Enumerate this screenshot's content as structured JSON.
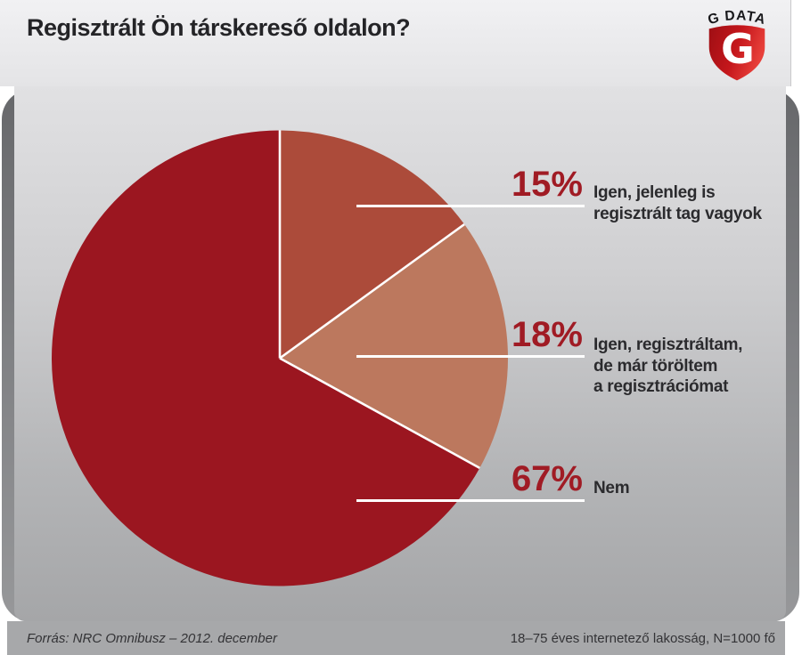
{
  "header": {
    "title": "Regisztrált Ön társkereső oldalon?",
    "logo": {
      "brand": "G DATA",
      "monogram": "G"
    }
  },
  "chart_data": {
    "type": "pie",
    "title": "Regisztrált Ön társkereső oldalon?",
    "start_angle_deg": 0,
    "direction": "clockwise",
    "unit": "%",
    "slices": [
      {
        "label": "Igen, jelenleg is regisztrált tag vagyok",
        "value_pct": 15,
        "color": "#AC4B3A"
      },
      {
        "label": "Igen, regisztráltam, de már töröltem a regisztrációmat",
        "value_pct": 18,
        "color": "#BC785E"
      },
      {
        "label": "Nem",
        "value_pct": 67,
        "color": "#9B1620"
      }
    ],
    "separator_color": "#FFFFFF",
    "legend_position": "right-callouts"
  },
  "callouts": [
    {
      "pct": "15%",
      "lines": [
        "Igen, jelenleg is",
        "regisztrált tag vagyok"
      ]
    },
    {
      "pct": "18%",
      "lines": [
        "Igen, regisztráltam,",
        "de már töröltem",
        "a regisztrációmat"
      ]
    },
    {
      "pct": "67%",
      "lines": [
        "Nem"
      ]
    }
  ],
  "footer": {
    "source": "Forrás: NRC Omnibusz – 2012. december",
    "sample": "18–75 éves internetező lakosság, N=1000 fő"
  },
  "colors": {
    "accent_red": "#A01B24",
    "brand_red_dark": "#9E0F14",
    "brand_red_light": "#E8403A"
  }
}
